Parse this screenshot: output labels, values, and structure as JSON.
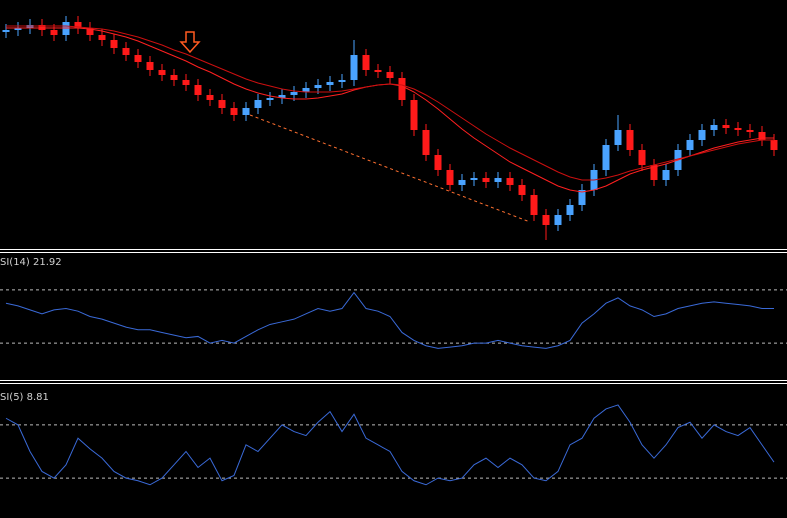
{
  "chart_data": [
    {
      "type": "candlestick",
      "ylim": [
        0,
        250
      ],
      "up_color": "#4aa3ff",
      "down_color": "#ff1a1a",
      "open": [
        218,
        220,
        222,
        225,
        220,
        215,
        228,
        222,
        215,
        210,
        202,
        195,
        188,
        180,
        175,
        170,
        165,
        155,
        150,
        142,
        135,
        142,
        150,
        152,
        155,
        158,
        162,
        165,
        168,
        170,
        195,
        180,
        178,
        172,
        150,
        120,
        95,
        80,
        65,
        70,
        72,
        68,
        72,
        65,
        55,
        35,
        25,
        35,
        45,
        60,
        80,
        105,
        120,
        100,
        85,
        70,
        80,
        100,
        110,
        120,
        125,
        122,
        120,
        118,
        110
      ],
      "high": [
        226,
        228,
        231,
        231,
        226,
        234,
        234,
        228,
        221,
        216,
        208,
        201,
        194,
        186,
        181,
        176,
        171,
        161,
        156,
        148,
        148,
        156,
        158,
        161,
        164,
        168,
        171,
        174,
        176,
        210,
        201,
        186,
        184,
        178,
        156,
        126,
        101,
        86,
        76,
        78,
        78,
        78,
        78,
        71,
        61,
        41,
        41,
        51,
        66,
        86,
        111,
        135,
        126,
        106,
        91,
        86,
        106,
        116,
        126,
        131,
        131,
        128,
        126,
        124,
        116
      ],
      "low": [
        212,
        214,
        216,
        214,
        209,
        209,
        216,
        209,
        204,
        196,
        189,
        182,
        174,
        169,
        164,
        159,
        149,
        144,
        136,
        129,
        129,
        136,
        144,
        146,
        149,
        152,
        156,
        159,
        162,
        164,
        174,
        172,
        166,
        144,
        114,
        89,
        74,
        59,
        59,
        64,
        62,
        62,
        59,
        49,
        29,
        10,
        19,
        29,
        39,
        54,
        74,
        99,
        94,
        79,
        64,
        64,
        74,
        94,
        104,
        114,
        116,
        114,
        112,
        104,
        94
      ],
      "close": [
        220,
        222,
        225,
        220,
        215,
        228,
        222,
        215,
        210,
        202,
        195,
        188,
        180,
        175,
        170,
        165,
        155,
        150,
        142,
        135,
        142,
        150,
        152,
        155,
        158,
        162,
        165,
        168,
        170,
        195,
        180,
        178,
        172,
        150,
        120,
        95,
        80,
        65,
        70,
        72,
        68,
        72,
        65,
        55,
        35,
        25,
        35,
        45,
        60,
        80,
        105,
        120,
        100,
        85,
        70,
        80,
        100,
        110,
        120,
        125,
        122,
        120,
        118,
        110,
        100
      ],
      "series": [
        {
          "color": "#ff2020",
          "values": [
            222,
            222,
            222,
            222,
            222,
            222,
            222,
            221,
            219,
            216,
            213,
            209,
            204,
            199,
            194,
            189,
            183,
            178,
            172,
            166,
            161,
            157,
            154,
            152,
            151,
            151,
            152,
            154,
            156,
            160,
            163,
            165,
            166,
            164,
            158,
            150,
            141,
            131,
            121,
            112,
            104,
            96,
            88,
            82,
            76,
            70,
            64,
            60,
            58,
            60,
            64,
            70,
            76,
            80,
            83,
            86,
            90,
            94,
            98,
            102,
            105,
            108,
            110,
            112,
            112
          ]
        },
        {
          "color": "#cc1010",
          "values": [
            224,
            224,
            224,
            224,
            224,
            224,
            223,
            222,
            221,
            219,
            216,
            213,
            209,
            205,
            200,
            196,
            191,
            186,
            181,
            176,
            171,
            167,
            164,
            161,
            159,
            158,
            158,
            158,
            159,
            161,
            163,
            165,
            166,
            165,
            161,
            155,
            148,
            140,
            132,
            124,
            116,
            109,
            102,
            96,
            90,
            84,
            78,
            73,
            70,
            70,
            72,
            75,
            79,
            82,
            85,
            88,
            91,
            94,
            97,
            100,
            103,
            106,
            108,
            110,
            110
          ]
        }
      ]
    },
    {
      "type": "line",
      "label": "SI(14) 21.92",
      "ylim": [
        0,
        100
      ],
      "levels": [
        30,
        70
      ],
      "color": "#3a6ad8",
      "values": [
        60,
        58,
        55,
        52,
        55,
        56,
        54,
        50,
        48,
        45,
        42,
        40,
        40,
        38,
        36,
        34,
        35,
        30,
        32,
        30,
        35,
        40,
        44,
        46,
        48,
        52,
        56,
        54,
        56,
        68,
        56,
        54,
        50,
        38,
        32,
        28,
        26,
        27,
        28,
        30,
        30,
        32,
        30,
        28,
        27,
        26,
        28,
        32,
        45,
        52,
        60,
        64,
        58,
        55,
        50,
        52,
        56,
        58,
        60,
        61,
        60,
        59,
        58,
        56,
        56
      ]
    },
    {
      "type": "line",
      "label": "SI(5) 8.81",
      "ylim": [
        0,
        100
      ],
      "levels": [
        30,
        70
      ],
      "color": "#3a6ad8",
      "values": [
        75,
        70,
        50,
        35,
        30,
        40,
        60,
        52,
        45,
        35,
        30,
        28,
        25,
        30,
        40,
        50,
        38,
        45,
        28,
        32,
        55,
        50,
        60,
        70,
        65,
        62,
        72,
        80,
        65,
        78,
        60,
        55,
        50,
        35,
        28,
        25,
        30,
        28,
        30,
        40,
        45,
        38,
        45,
        40,
        30,
        28,
        35,
        55,
        60,
        75,
        82,
        85,
        72,
        55,
        45,
        55,
        68,
        72,
        60,
        70,
        65,
        62,
        68,
        55,
        42
      ]
    }
  ]
}
